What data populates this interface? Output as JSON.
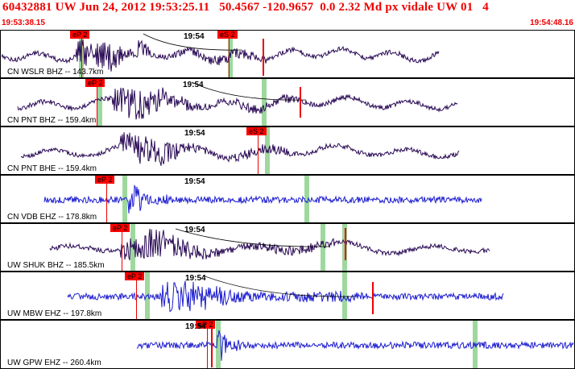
{
  "header": {
    "title": "60432881 UW Jun 24, 2012 19:53:25.11   50.4567 -120.9657  0.0 2.32 Md px vidale UW 01   4",
    "start_time": "19:53:38.15",
    "end_time": "19:54:48.16"
  },
  "colors": {
    "header": "#ee0000",
    "trace_bhz": "#2a0a55",
    "trace_ehz": "#1d1dd0",
    "pick": "#ff0000",
    "band": "#9ed89e"
  },
  "channels": [
    {
      "label": "CN WSLR BHZ -- 143.7km",
      "tick": "19:54",
      "picks": [
        "eP 2",
        "eS 2"
      ],
      "trace": "bhz"
    },
    {
      "label": "CN PNT BHZ -- 159.4km",
      "tick": "19:54",
      "picks": [
        "eP 2"
      ],
      "trace": "bhz"
    },
    {
      "label": "CN PNT BHE -- 159.4km",
      "tick": "19:54",
      "picks": [
        "eS 2"
      ],
      "trace": "bhz"
    },
    {
      "label": "CN VDB EHZ -- 178.8km",
      "tick": "19:54",
      "picks": [
        "eP 2"
      ],
      "trace": "ehz"
    },
    {
      "label": "UW SHUK BHZ -- 185.5km",
      "tick": "19:54",
      "picks": [
        "eP 2"
      ],
      "trace": "bhz"
    },
    {
      "label": "UW MBW EHZ -- 197.8km",
      "tick": "19:54",
      "picks": [
        "eP 2"
      ],
      "trace": "ehz"
    },
    {
      "label": "UW GPW EHZ -- 260.4km",
      "tick": "19:54",
      "picks": [
        "eP 2"
      ],
      "trace": "ehz"
    }
  ]
}
